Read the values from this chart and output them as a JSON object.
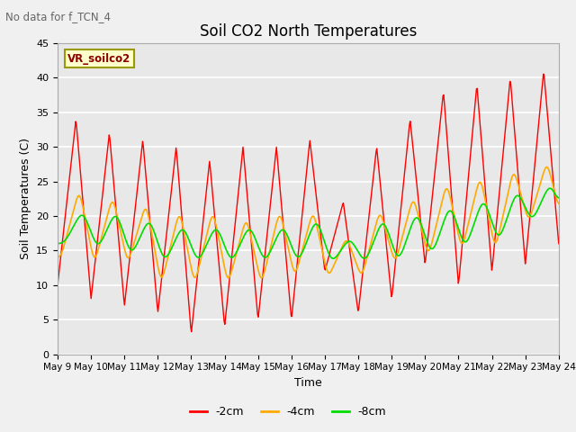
{
  "title": "Soil CO2 North Temperatures",
  "xlabel": "Time",
  "ylabel": "Soil Temperatures (C)",
  "watermark": "No data for f_TCN_4",
  "box_label": "VR_soilco2",
  "ylim": [
    0,
    45
  ],
  "x_tick_labels": [
    "May 9",
    "May 10",
    "May 11",
    "May 12",
    "May 13",
    "May 14",
    "May 15",
    "May 16",
    "May 17",
    "May 18",
    "May 19",
    "May 20",
    "May 21",
    "May 22",
    "May 23",
    "May 24"
  ],
  "colors": {
    "2cm": "#ff0000",
    "4cm": "#ffaa00",
    "8cm": "#00dd00"
  },
  "background_color": "#f0f0f0",
  "plot_bg": "#e8e8e8",
  "legend_entries": [
    "-2cm",
    "-4cm",
    "-8cm"
  ],
  "red_peaks": [
    34,
    10,
    32,
    8,
    31,
    7,
    30,
    6,
    28,
    3,
    30,
    4,
    30,
    5,
    31,
    5,
    22,
    12,
    30,
    6,
    34,
    8,
    38,
    13,
    39,
    10,
    40,
    12,
    41,
    13,
    16
  ],
  "ora_peaks": [
    24,
    14,
    23,
    13,
    22,
    13,
    21,
    10,
    21,
    10,
    20,
    10,
    21,
    10,
    21,
    11,
    17,
    11,
    21,
    11,
    23,
    13,
    25,
    14,
    26,
    15,
    27,
    15,
    28,
    19
  ],
  "grn_peaks": [
    21,
    16,
    21,
    15,
    20,
    14,
    19,
    13,
    19,
    13,
    19,
    13,
    19,
    13,
    20,
    13,
    17,
    13,
    20,
    13,
    21,
    13,
    22,
    14,
    23,
    15,
    24,
    16,
    25,
    19
  ]
}
